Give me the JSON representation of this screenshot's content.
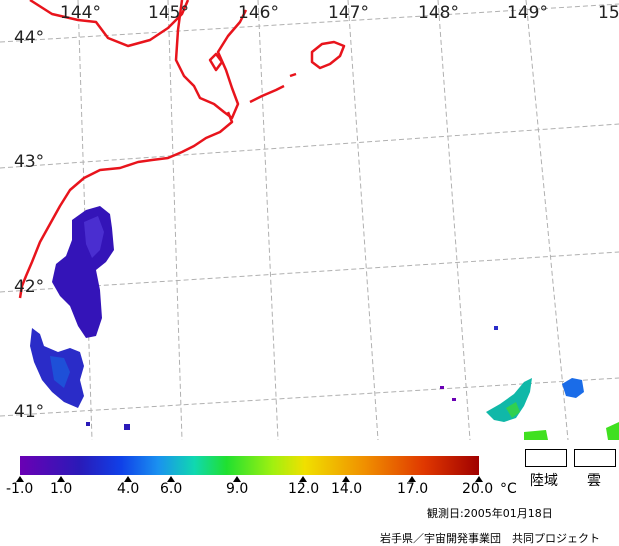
{
  "map": {
    "longitude_labels": [
      "144°",
      "145°",
      "146°",
      "147°",
      "148°",
      "149°",
      "15"
    ],
    "latitude_labels": [
      "44°",
      "43°",
      "42°",
      "41°"
    ],
    "coastline_color": "#e8141c",
    "grid_color": "#b0b0b0"
  },
  "colorbar": {
    "tick_labels": [
      "-1.0",
      "1.0",
      "4.0",
      "6.0",
      "9.0",
      "12.0",
      "14.0",
      "17.0",
      "20.0"
    ],
    "unit": "°C",
    "range": [
      -1.0,
      20.0
    ]
  },
  "legend": {
    "land_label": "陸域",
    "cloud_label": "雲"
  },
  "observation_date": "観測日:2005年01月18日",
  "credit": "岩手県／宇宙開発事業団　共同プロジェクト"
}
